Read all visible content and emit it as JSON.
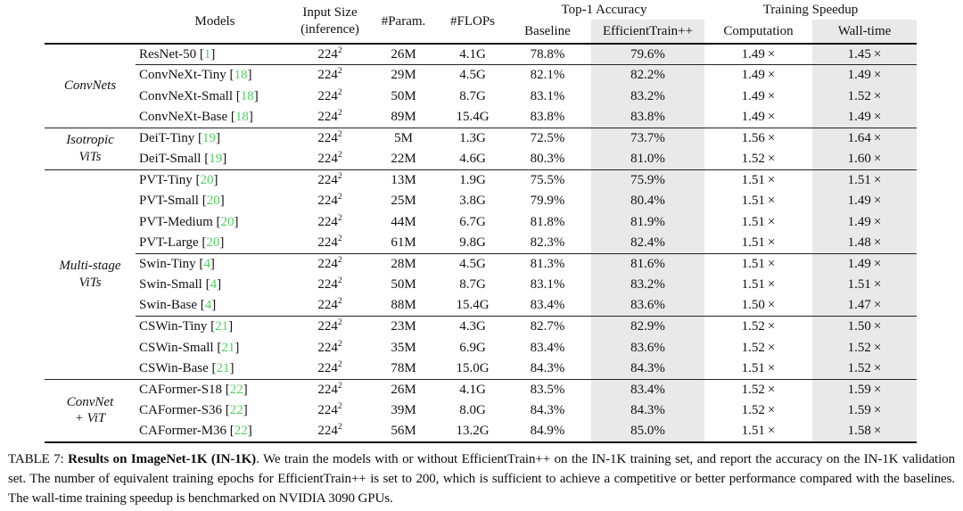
{
  "colors": {
    "citation_green": "#4ed25f",
    "column_shade_gray": "#e9e9e9",
    "rule_black": "#111111"
  },
  "header": {
    "models": "Models",
    "input_size_line1": "Input Size",
    "input_size_line2": "(inference)",
    "params": "#Param.",
    "flops": "#FLOPs",
    "top1_accuracy": "Top-1 Accuracy",
    "baseline": "Baseline",
    "efficienttrain": "EfficientTrain++",
    "training_speedup": "Training Speedup",
    "computation": "Computation",
    "walltime": "Wall-time"
  },
  "groups": [
    {
      "label_lines": [
        "ConvNets"
      ],
      "start": 0,
      "count": 4
    },
    {
      "label_lines": [
        "Isotropic",
        "ViTs"
      ],
      "start": 4,
      "count": 2
    },
    {
      "label_lines": [
        "Multi-stage",
        "ViTs"
      ],
      "start": 6,
      "count": 10
    },
    {
      "label_lines": [
        "ConvNet",
        "+ ViT"
      ],
      "start": 16,
      "count": 3
    }
  ],
  "rows": [
    {
      "model": "ResNet-50",
      "cite": "1",
      "size": "224",
      "exp": "2",
      "params": "26M",
      "flops": "4.1G",
      "baseline": "78.8%",
      "baseline_bold": false,
      "et": "79.6%",
      "et_bold": true,
      "comp": "1.49 ×",
      "wall": "1.45 ×",
      "sep": "partial"
    },
    {
      "model": "ConvNeXt-Tiny",
      "cite": "18",
      "size": "224",
      "exp": "2",
      "params": "29M",
      "flops": "4.5G",
      "baseline": "82.1%",
      "baseline_bold": false,
      "et": "82.2%",
      "et_bold": true,
      "comp": "1.49 ×",
      "wall": "1.49 ×",
      "sep": "none"
    },
    {
      "model": "ConvNeXt-Small",
      "cite": "18",
      "size": "224",
      "exp": "2",
      "params": "50M",
      "flops": "8.7G",
      "baseline": "83.1%",
      "baseline_bold": false,
      "et": "83.2%",
      "et_bold": true,
      "comp": "1.49 ×",
      "wall": "1.52 ×",
      "sep": "none"
    },
    {
      "model": "ConvNeXt-Base",
      "cite": "18",
      "size": "224",
      "exp": "2",
      "params": "89M",
      "flops": "15.4G",
      "baseline": "83.8%",
      "baseline_bold": false,
      "et": "83.8%",
      "et_bold": true,
      "comp": "1.49 ×",
      "wall": "1.49 ×",
      "sep": "full"
    },
    {
      "model": "DeiT-Tiny",
      "cite": "19",
      "size": "224",
      "exp": "2",
      "params": "5M",
      "flops": "1.3G",
      "baseline": "72.5%",
      "baseline_bold": false,
      "et": "73.7%",
      "et_bold": true,
      "comp": "1.56 ×",
      "wall": "1.64 ×",
      "sep": "none"
    },
    {
      "model": "DeiT-Small",
      "cite": "19",
      "size": "224",
      "exp": "2",
      "params": "22M",
      "flops": "4.6G",
      "baseline": "80.3%",
      "baseline_bold": false,
      "et": "81.0%",
      "et_bold": true,
      "comp": "1.52 ×",
      "wall": "1.60 ×",
      "sep": "full"
    },
    {
      "model": "PVT-Tiny",
      "cite": "20",
      "size": "224",
      "exp": "2",
      "params": "13M",
      "flops": "1.9G",
      "baseline": "75.5%",
      "baseline_bold": false,
      "et": "75.9%",
      "et_bold": true,
      "comp": "1.51 ×",
      "wall": "1.51 ×",
      "sep": "none"
    },
    {
      "model": "PVT-Small",
      "cite": "20",
      "size": "224",
      "exp": "2",
      "params": "25M",
      "flops": "3.8G",
      "baseline": "79.9%",
      "baseline_bold": false,
      "et": "80.4%",
      "et_bold": true,
      "comp": "1.51 ×",
      "wall": "1.49 ×",
      "sep": "none"
    },
    {
      "model": "PVT-Medium",
      "cite": "20",
      "size": "224",
      "exp": "2",
      "params": "44M",
      "flops": "6.7G",
      "baseline": "81.8%",
      "baseline_bold": false,
      "et": "81.9%",
      "et_bold": true,
      "comp": "1.51 ×",
      "wall": "1.49 ×",
      "sep": "none"
    },
    {
      "model": "PVT-Large",
      "cite": "20",
      "size": "224",
      "exp": "2",
      "params": "61M",
      "flops": "9.8G",
      "baseline": "82.3%",
      "baseline_bold": false,
      "et": "82.4%",
      "et_bold": true,
      "comp": "1.51 ×",
      "wall": "1.48 ×",
      "sep": "partial"
    },
    {
      "model": "Swin-Tiny",
      "cite": "4",
      "size": "224",
      "exp": "2",
      "params": "28M",
      "flops": "4.5G",
      "baseline": "81.3%",
      "baseline_bold": false,
      "et": "81.6%",
      "et_bold": true,
      "comp": "1.51 ×",
      "wall": "1.49 ×",
      "sep": "none"
    },
    {
      "model": "Swin-Small",
      "cite": "4",
      "size": "224",
      "exp": "2",
      "params": "50M",
      "flops": "8.7G",
      "baseline": "83.1%",
      "baseline_bold": false,
      "et": "83.2%",
      "et_bold": true,
      "comp": "1.51 ×",
      "wall": "1.51 ×",
      "sep": "none"
    },
    {
      "model": "Swin-Base",
      "cite": "4",
      "size": "224",
      "exp": "2",
      "params": "88M",
      "flops": "15.4G",
      "baseline": "83.4%",
      "baseline_bold": false,
      "et": "83.6%",
      "et_bold": true,
      "comp": "1.50 ×",
      "wall": "1.47 ×",
      "sep": "partial"
    },
    {
      "model": "CSWin-Tiny",
      "cite": "21",
      "size": "224",
      "exp": "2",
      "params": "23M",
      "flops": "4.3G",
      "baseline": "82.7%",
      "baseline_bold": false,
      "et": "82.9%",
      "et_bold": true,
      "comp": "1.52 ×",
      "wall": "1.50 ×",
      "sep": "none"
    },
    {
      "model": "CSWin-Small",
      "cite": "21",
      "size": "224",
      "exp": "2",
      "params": "35M",
      "flops": "6.9G",
      "baseline": "83.4%",
      "baseline_bold": false,
      "et": "83.6%",
      "et_bold": true,
      "comp": "1.52 ×",
      "wall": "1.52 ×",
      "sep": "none"
    },
    {
      "model": "CSWin-Base",
      "cite": "21",
      "size": "224",
      "exp": "2",
      "params": "78M",
      "flops": "15.0G",
      "baseline": "84.3%",
      "baseline_bold": false,
      "et": "84.3%",
      "et_bold": true,
      "comp": "1.51 ×",
      "wall": "1.52 ×",
      "sep": "full"
    },
    {
      "model": "CAFormer-S18",
      "cite": "22",
      "size": "224",
      "exp": "2",
      "params": "26M",
      "flops": "4.1G",
      "baseline": "83.5%",
      "baseline_bold": true,
      "et": "83.4%",
      "et_bold": false,
      "comp": "1.52 ×",
      "wall": "1.59 ×",
      "sep": "none"
    },
    {
      "model": "CAFormer-S36",
      "cite": "22",
      "size": "224",
      "exp": "2",
      "params": "39M",
      "flops": "8.0G",
      "baseline": "84.3%",
      "baseline_bold": false,
      "et": "84.3%",
      "et_bold": true,
      "comp": "1.52 ×",
      "wall": "1.59 ×",
      "sep": "none"
    },
    {
      "model": "CAFormer-M36",
      "cite": "22",
      "size": "224",
      "exp": "2",
      "params": "56M",
      "flops": "13.2G",
      "baseline": "84.9%",
      "baseline_bold": false,
      "et": "85.0%",
      "et_bold": true,
      "comp": "1.51 ×",
      "wall": "1.58 ×",
      "sep": "none"
    }
  ],
  "caption": {
    "label": "TABLE 7: ",
    "title": "Results on ImageNet-1K (IN-1K)",
    "body": ". We train the models with or without EfficientTrain++ on the IN-1K training set, and report the accuracy on the IN-1K validation set. The number of equivalent training epochs for EfficientTrain++ is set to 200, which is sufficient to achieve a competitive or better performance compared with the baselines. The wall-time training speedup is benchmarked on NVIDIA 3090 GPUs."
  }
}
